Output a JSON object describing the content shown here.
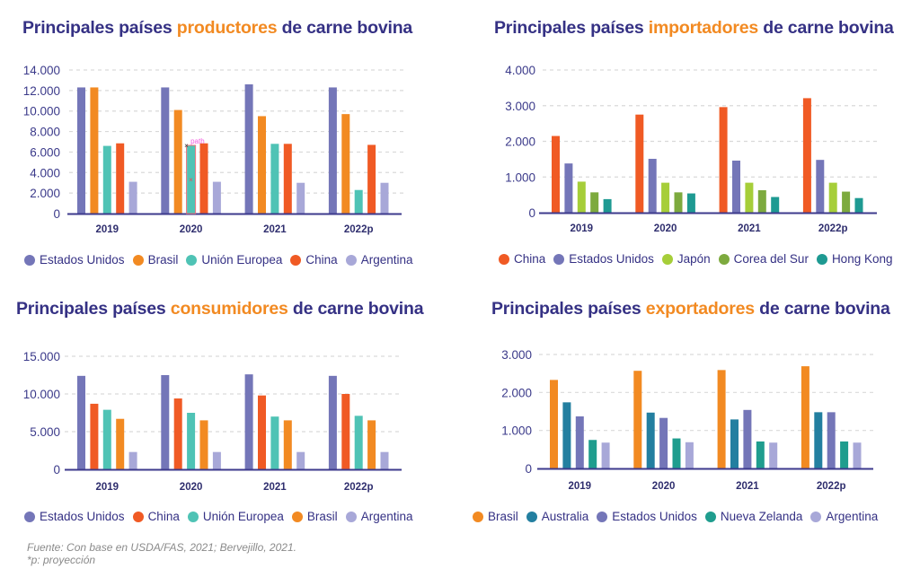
{
  "chart_data": [
    {
      "type": "bar",
      "title": "Principales países productores de carne bovina",
      "title_parts": {
        "pre": "Principales países ",
        "highlight": "productores",
        "post": " de carne bovina"
      },
      "categories": [
        "2019",
        "2020",
        "2021",
        "2022p"
      ],
      "yticks": [
        "0",
        "2.000",
        "4.000",
        "6.000",
        "8.000",
        "10.000",
        "12.000",
        "14.000"
      ],
      "ylim": [
        0,
        14000
      ],
      "ytick_values": [
        0,
        2000,
        4000,
        6000,
        8000,
        10000,
        12000,
        14000
      ],
      "grid": true,
      "legend_position": "bottom",
      "xlabel": "",
      "ylabel": "",
      "series": [
        {
          "name": "Estados Unidos",
          "color": "#7476b8",
          "values": [
            12300,
            12300,
            12600,
            12300
          ]
        },
        {
          "name": "Brasil",
          "color": "#f28a22",
          "values": [
            12300,
            10100,
            9500,
            9700
          ]
        },
        {
          "name": "Unión Europea",
          "color": "#4fc3b5",
          "values": [
            6600,
            6650,
            6800,
            2300
          ]
        },
        {
          "name": "China",
          "color": "#f05a24",
          "values": [
            6850,
            6850,
            6800,
            6700
          ]
        },
        {
          "name": "Argentina",
          "color": "#a8a8d8",
          "values": [
            3100,
            3100,
            3000,
            3000
          ]
        }
      ],
      "annotation": {
        "label": "path",
        "category": "2020",
        "series": "Unión Europea"
      }
    },
    {
      "type": "bar",
      "title": "Principales países importadores de carne bovina",
      "title_parts": {
        "pre": "Principales países ",
        "highlight": "importadores",
        "post": " de carne bovina"
      },
      "categories": [
        "2019",
        "2020",
        "2021",
        "2022p"
      ],
      "yticks": [
        "0",
        "1.000",
        "2.000",
        "3.000",
        "4.000"
      ],
      "ylim": [
        0,
        4000
      ],
      "ytick_values": [
        0,
        1000,
        2000,
        3000,
        4000
      ],
      "grid": true,
      "legend_position": "bottom",
      "xlabel": "",
      "ylabel": "",
      "series": [
        {
          "name": "China",
          "color": "#f05a24",
          "values": [
            2150,
            2750,
            2960,
            3210
          ]
        },
        {
          "name": "Estados Unidos",
          "color": "#7476b8",
          "values": [
            1380,
            1510,
            1460,
            1480
          ]
        },
        {
          "name": "Japón",
          "color": "#a6ce39",
          "values": [
            870,
            840,
            840,
            840
          ]
        },
        {
          "name": "Corea del Sur",
          "color": "#7daa3e",
          "values": [
            570,
            570,
            630,
            590
          ]
        },
        {
          "name": "Hong Kong",
          "color": "#1e9a92",
          "values": [
            380,
            540,
            440,
            410
          ]
        }
      ]
    },
    {
      "type": "bar",
      "title": "Principales países consumidores de carne bovina",
      "title_parts": {
        "pre": "Principales países ",
        "highlight": "consumidores",
        "post": " de carne bovina"
      },
      "categories": [
        "2019",
        "2020",
        "2021",
        "2022p"
      ],
      "yticks": [
        "0",
        "5.000",
        "10.000",
        "15.000"
      ],
      "ylim": [
        0,
        15000
      ],
      "ytick_values": [
        0,
        5000,
        10000,
        15000
      ],
      "grid": true,
      "legend_position": "bottom",
      "xlabel": "",
      "ylabel": "",
      "series": [
        {
          "name": "Estados Unidos",
          "color": "#7476b8",
          "values": [
            12400,
            12500,
            12600,
            12400
          ]
        },
        {
          "name": "China",
          "color": "#f05a24",
          "values": [
            8700,
            9400,
            9800,
            10000
          ]
        },
        {
          "name": "Unión Europea",
          "color": "#4fc3b5",
          "values": [
            7900,
            7500,
            7000,
            7100
          ]
        },
        {
          "name": "Brasil",
          "color": "#f28a22",
          "values": [
            6700,
            6500,
            6500,
            6500
          ]
        },
        {
          "name": "Argentina",
          "color": "#a8a8d8",
          "values": [
            2300,
            2300,
            2300,
            2300
          ]
        }
      ]
    },
    {
      "type": "bar",
      "title": "Principales países exportadores de carne bovina",
      "title_parts": {
        "pre": "Principales países ",
        "highlight": "exportadores",
        "post": " de carne bovina"
      },
      "categories": [
        "2019",
        "2020",
        "2021",
        "2022p"
      ],
      "yticks": [
        "0",
        "1.000",
        "2.000",
        "3.000"
      ],
      "ylim": [
        0,
        3000
      ],
      "ytick_values": [
        0,
        1000,
        2000,
        3000
      ],
      "grid": true,
      "legend_position": "bottom",
      "xlabel": "",
      "ylabel": "",
      "series": [
        {
          "name": "Brasil",
          "color": "#f28a22",
          "values": [
            2330,
            2570,
            2590,
            2690
          ]
        },
        {
          "name": "Australia",
          "color": "#237fa0",
          "values": [
            1740,
            1470,
            1290,
            1480
          ]
        },
        {
          "name": "Estados Unidos",
          "color": "#7476b8",
          "values": [
            1370,
            1330,
            1540,
            1480
          ]
        },
        {
          "name": "Nueva Zelanda",
          "color": "#1f9d8e",
          "values": [
            750,
            790,
            710,
            710
          ]
        },
        {
          "name": "Argentina",
          "color": "#a8a8d8",
          "values": [
            680,
            690,
            680,
            680
          ]
        }
      ]
    }
  ],
  "footnote": {
    "source": "Fuente: Con base en USDA/FAS, 2021; Bervejillo, 2021.",
    "note": "*p: proyección"
  },
  "colors": {
    "title": "#353184",
    "highlight": "#f28a22",
    "axis": "#3d3a8c",
    "grid": "#d9d9d9"
  }
}
